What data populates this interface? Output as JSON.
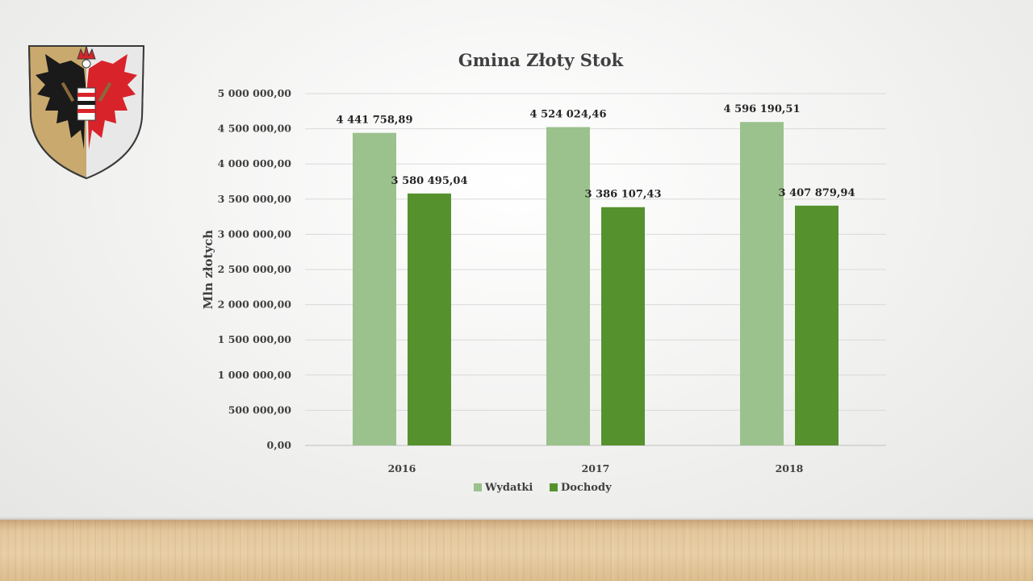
{
  "chart_data": {
    "type": "bar",
    "title": "Gmina Złoty Stok",
    "xlabel": "",
    "ylabel": "Mln złotych",
    "ylim": [
      0,
      5000000
    ],
    "ytick_step": 500000,
    "yticks": [
      "0,00",
      "500 000,00",
      "1 000 000,00",
      "1 500 000,00",
      "2 000 000,00",
      "2 500 000,00",
      "3 000 000,00",
      "3 500 000,00",
      "4 000 000,00",
      "4 500 000,00",
      "5 000 000,00"
    ],
    "grid": true,
    "legend_position": "bottom",
    "categories": [
      "2016",
      "2017",
      "2018"
    ],
    "series": [
      {
        "name": "Wydatki",
        "color": "#9bc18c",
        "values": [
          4441758.89,
          4524024.46,
          4596190.51
        ],
        "labels": [
          "4 441 758,89",
          "4 524 024,46",
          "4 596 190,51"
        ]
      },
      {
        "name": "Dochody",
        "color": "#55922e",
        "values": [
          3580495.04,
          3386107.43,
          3407879.94
        ],
        "labels": [
          "3 580 495,04",
          "3 386 107,43",
          "3 407 879,94"
        ]
      }
    ]
  },
  "colors": {
    "gridline": "#d9d9d9",
    "axis": "#bfbfbf",
    "text": "#404040"
  },
  "icons": {
    "logo": "coat-of-arms-icon"
  }
}
